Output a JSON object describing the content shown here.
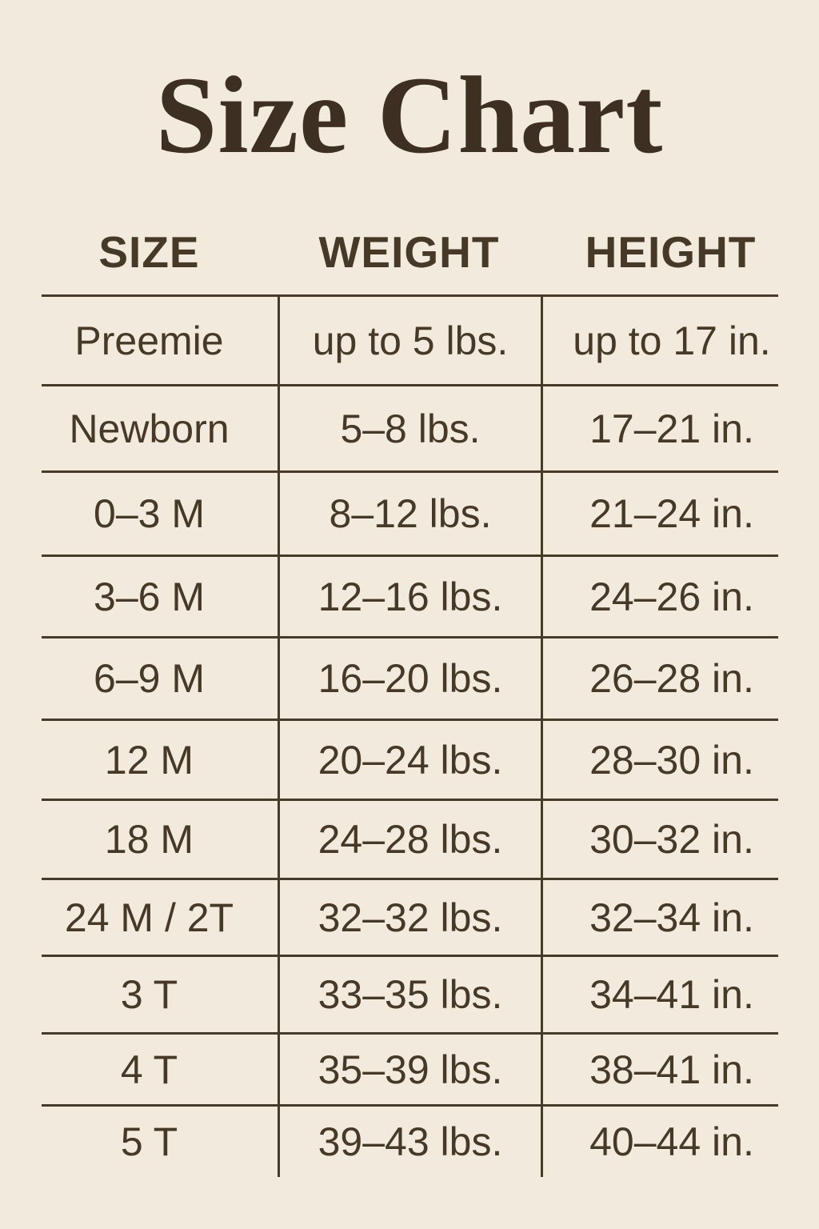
{
  "title": "Size Chart",
  "colors": {
    "background": "#f2eadd",
    "text": "#473927",
    "title": "#3d3023",
    "line": "#463a29"
  },
  "chart_data": {
    "type": "table",
    "title": "Size Chart",
    "columns": [
      "SIZE",
      "WEIGHT",
      "HEIGHT"
    ],
    "rows": [
      [
        "Preemie",
        "up to 5 lbs.",
        "up to 17 in."
      ],
      [
        "Newborn",
        "5–8 lbs.",
        "17–21 in."
      ],
      [
        "0–3 M",
        "8–12 lbs.",
        "21–24 in."
      ],
      [
        "3–6 M",
        "12–16 lbs.",
        "24–26 in."
      ],
      [
        "6–9 M",
        "16–20 lbs.",
        "26–28 in."
      ],
      [
        "12 M",
        "20–24 lbs.",
        "28–30 in."
      ],
      [
        "18 M",
        "24–28 lbs.",
        "30–32 in."
      ],
      [
        "24 M / 2T",
        "32–32 lbs.",
        "32–34 in."
      ],
      [
        "3 T",
        "33–35 lbs.",
        "34–41 in."
      ],
      [
        "4 T",
        "35–39 lbs.",
        "38–41 in."
      ],
      [
        "5 T",
        "39–43 lbs.",
        "40–44 in."
      ]
    ]
  }
}
